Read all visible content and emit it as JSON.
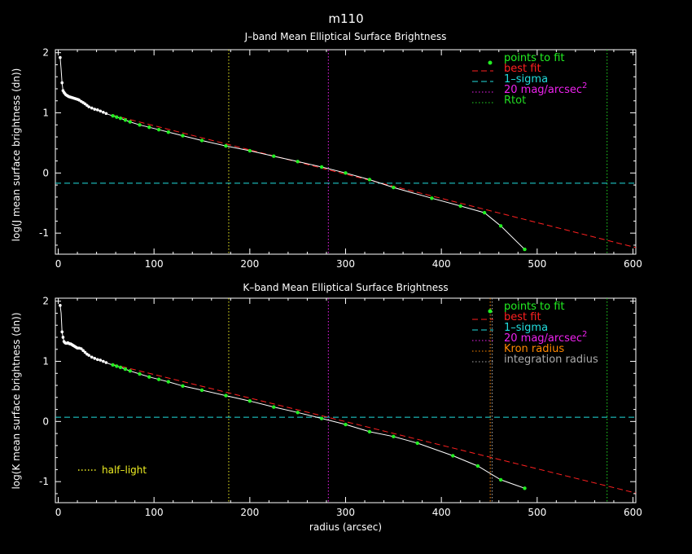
{
  "title": "m110",
  "colors": {
    "background": "#000000",
    "axis": "#ffffff",
    "points_to_fit": "#22ee22",
    "best_fit": "#ff2020",
    "one_sigma": "#22dddd",
    "mag20": "#ee22ee",
    "rtot": "#22dd22",
    "kron": "#ff8800",
    "integration": "#aaaaaa",
    "half_light": "#eeee22"
  },
  "chart_data": [
    {
      "type": "line",
      "title": "J–band Mean Elliptical Surface Brightness",
      "xlabel": "",
      "ylabel": "log(J mean surface brightness (dn))",
      "xlim": [
        -3,
        603
      ],
      "ylim": [
        -1.35,
        2.05
      ],
      "xticks": [
        0,
        100,
        200,
        300,
        400,
        500,
        600
      ],
      "yticks": [
        -1,
        0,
        1,
        2
      ],
      "legend_position": "top-right",
      "legend": [
        {
          "label": "points to fit",
          "style": "dot",
          "color": "#22ee22"
        },
        {
          "label": "best fit",
          "style": "dashed",
          "color": "#ff2020"
        },
        {
          "label": "1–sigma",
          "style": "dashed",
          "color": "#22dddd"
        },
        {
          "label": "20 mag/arcsec",
          "sup": "2",
          "style": "dotted",
          "color": "#ee22ee"
        },
        {
          "label": "Rtot",
          "style": "dotted",
          "color": "#22dd22"
        }
      ],
      "profile": {
        "x": [
          2,
          3,
          4,
          5,
          6,
          7,
          8,
          9,
          10,
          11,
          12,
          13,
          14,
          15,
          16,
          17,
          18,
          19,
          20,
          21,
          22,
          24,
          26,
          28,
          30,
          32,
          35,
          38,
          41,
          44,
          47,
          50,
          53,
          57,
          61,
          65,
          70,
          75,
          85,
          95,
          105,
          115,
          130,
          150,
          175,
          200,
          225,
          250,
          275,
          300,
          325,
          350,
          390,
          420,
          445,
          462,
          487
        ],
        "y": [
          1.92,
          1.72,
          1.5,
          1.37,
          1.34,
          1.32,
          1.3,
          1.29,
          1.28,
          1.27,
          1.265,
          1.26,
          1.255,
          1.25,
          1.245,
          1.24,
          1.235,
          1.23,
          1.225,
          1.22,
          1.21,
          1.19,
          1.17,
          1.15,
          1.125,
          1.1,
          1.08,
          1.06,
          1.05,
          1.03,
          1.01,
          0.99,
          0.97,
          0.95,
          0.93,
          0.91,
          0.88,
          0.85,
          0.8,
          0.76,
          0.72,
          0.68,
          0.62,
          0.54,
          0.45,
          0.37,
          0.28,
          0.19,
          0.1,
          0.0,
          -0.11,
          -0.24,
          -0.42,
          -0.55,
          -0.66,
          -0.88,
          -1.27
        ]
      },
      "white_points": {
        "x": [
          2,
          4,
          5,
          6,
          7,
          8,
          9,
          10,
          11,
          12,
          13,
          14,
          15,
          16,
          17,
          18,
          19,
          20,
          21,
          22,
          24,
          26,
          28,
          30,
          32,
          35,
          38,
          41,
          44,
          47,
          50
        ],
        "y": [
          1.92,
          1.5,
          1.37,
          1.34,
          1.32,
          1.3,
          1.29,
          1.28,
          1.27,
          1.265,
          1.26,
          1.255,
          1.25,
          1.245,
          1.24,
          1.235,
          1.23,
          1.225,
          1.22,
          1.21,
          1.19,
          1.17,
          1.15,
          1.125,
          1.1,
          1.08,
          1.06,
          1.05,
          1.03,
          1.01,
          0.99
        ]
      },
      "points_to_fit": {
        "x": [
          57,
          61,
          65,
          70,
          75,
          85,
          95,
          105,
          115,
          130,
          150,
          175,
          200,
          225,
          250,
          275,
          300,
          325,
          350,
          390,
          420,
          445,
          462,
          487
        ],
        "y": [
          0.95,
          0.93,
          0.91,
          0.88,
          0.85,
          0.8,
          0.76,
          0.72,
          0.68,
          0.62,
          0.54,
          0.45,
          0.37,
          0.28,
          0.19,
          0.1,
          0.0,
          -0.11,
          -0.24,
          -0.42,
          -0.55,
          -0.66,
          -0.88,
          -1.27
        ]
      },
      "best_fit": {
        "x": [
          57,
          603
        ],
        "y": [
          0.96,
          -1.24
        ]
      },
      "one_sigma_y": -0.17,
      "mag20_x": 282,
      "rtot_x": 573,
      "half_light_x": 178
    },
    {
      "type": "line",
      "title": "K–band Mean Elliptical Surface Brightness",
      "xlabel": "radius (arcsec)",
      "ylabel": "log(K mean surface brightness (dn))",
      "xlim": [
        -3,
        603
      ],
      "ylim": [
        -1.35,
        2.05
      ],
      "xticks": [
        0,
        100,
        200,
        300,
        400,
        500,
        600
      ],
      "yticks": [
        -1,
        0,
        1,
        2
      ],
      "legend_position": "top-right",
      "legend": [
        {
          "label": "points to fit",
          "style": "dot",
          "color": "#22ee22"
        },
        {
          "label": "best fit",
          "style": "dashed",
          "color": "#ff2020"
        },
        {
          "label": "1–sigma",
          "style": "dashed",
          "color": "#22dddd"
        },
        {
          "label": "20 mag/arcsec",
          "sup": "2",
          "style": "dotted",
          "color": "#ee22ee"
        },
        {
          "label": "Kron radius",
          "style": "dotted",
          "color": "#ff8800"
        },
        {
          "label": "integration radius",
          "style": "dotted",
          "color": "#aaaaaa"
        }
      ],
      "annotation": {
        "label": "half–light",
        "color": "#eeee22"
      },
      "profile": {
        "x": [
          2,
          3,
          4,
          5,
          6,
          7,
          8,
          9,
          10,
          11,
          12,
          13,
          14,
          15,
          16,
          17,
          18,
          19,
          20,
          21,
          22,
          24,
          26,
          28,
          30,
          32,
          35,
          38,
          41,
          44,
          47,
          50,
          53,
          57,
          61,
          65,
          70,
          75,
          85,
          95,
          105,
          115,
          130,
          150,
          175,
          200,
          225,
          250,
          275,
          300,
          325,
          350,
          375,
          412,
          438,
          462,
          487
        ],
        "y": [
          1.93,
          1.8,
          1.49,
          1.4,
          1.33,
          1.31,
          1.3,
          1.3,
          1.31,
          1.3,
          1.29,
          1.29,
          1.28,
          1.27,
          1.26,
          1.25,
          1.24,
          1.23,
          1.22,
          1.22,
          1.22,
          1.21,
          1.18,
          1.15,
          1.12,
          1.1,
          1.07,
          1.05,
          1.03,
          1.02,
          1.0,
          0.98,
          0.96,
          0.94,
          0.92,
          0.9,
          0.87,
          0.84,
          0.79,
          0.74,
          0.7,
          0.66,
          0.59,
          0.52,
          0.43,
          0.34,
          0.24,
          0.15,
          0.05,
          -0.05,
          -0.17,
          -0.25,
          -0.36,
          -0.57,
          -0.74,
          -0.97,
          -1.11
        ]
      },
      "white_points": {
        "x": [
          2,
          4,
          5,
          6,
          7,
          8,
          9,
          10,
          11,
          12,
          13,
          14,
          15,
          16,
          17,
          18,
          19,
          20,
          21,
          22,
          24,
          26,
          28,
          30,
          32,
          35,
          38,
          41,
          44,
          47,
          50
        ],
        "y": [
          1.93,
          1.49,
          1.4,
          1.33,
          1.31,
          1.3,
          1.3,
          1.31,
          1.3,
          1.29,
          1.29,
          1.28,
          1.27,
          1.26,
          1.25,
          1.24,
          1.23,
          1.22,
          1.22,
          1.22,
          1.21,
          1.18,
          1.15,
          1.12,
          1.1,
          1.07,
          1.05,
          1.03,
          1.02,
          1.0,
          0.98
        ]
      },
      "points_to_fit": {
        "x": [
          57,
          61,
          65,
          70,
          75,
          85,
          95,
          105,
          115,
          130,
          150,
          175,
          200,
          225,
          250,
          275,
          300,
          325,
          350,
          375,
          412,
          438,
          462,
          487
        ],
        "y": [
          0.94,
          0.92,
          0.9,
          0.87,
          0.84,
          0.79,
          0.74,
          0.7,
          0.66,
          0.59,
          0.52,
          0.43,
          0.34,
          0.24,
          0.15,
          0.05,
          -0.05,
          -0.17,
          -0.25,
          -0.36,
          -0.57,
          -0.74,
          -0.97,
          -1.11
        ]
      },
      "best_fit": {
        "x": [
          57,
          603
        ],
        "y": [
          0.95,
          -1.19
        ]
      },
      "one_sigma_y": 0.07,
      "mag20_x": 282,
      "kron_x": 451,
      "integration_x": 453,
      "rtot_x": 573,
      "half_light_x": 178
    }
  ]
}
